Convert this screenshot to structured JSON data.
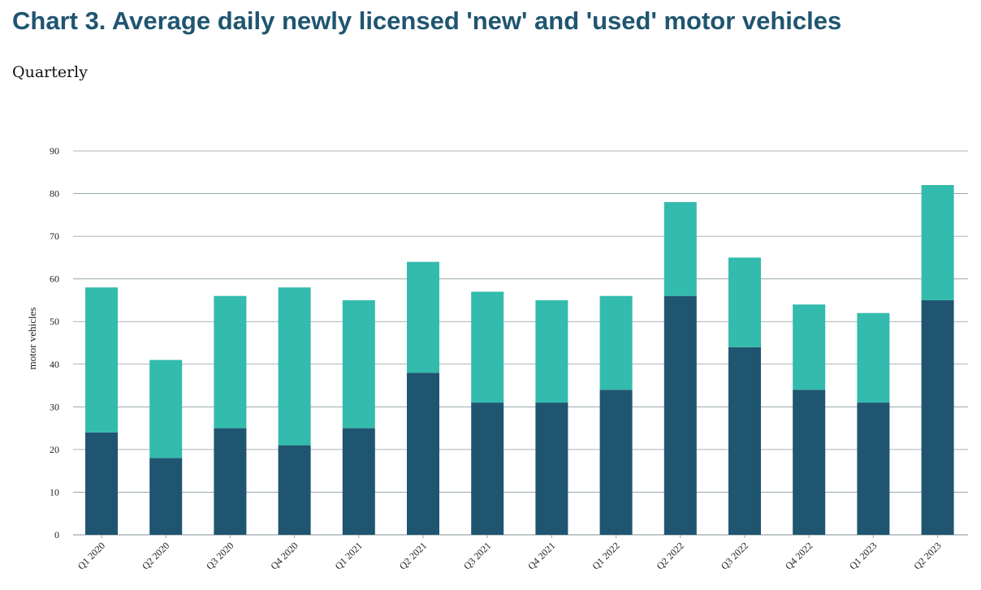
{
  "chart_data": {
    "type": "bar",
    "stacked": true,
    "title": "Chart 3. Average daily newly licensed 'new' and 'used' motor vehicles",
    "subtitle": "Quarterly",
    "xlabel": "",
    "ylabel": "motor vehicles",
    "ylim": [
      0,
      90
    ],
    "yticks": [
      0,
      10,
      20,
      30,
      40,
      50,
      60,
      70,
      80,
      90
    ],
    "grid": true,
    "categories": [
      "Q1 2020",
      "Q2 2020",
      "Q3 2020",
      "Q4 2020",
      "Q1 2021",
      "Q2 2021",
      "Q3 2021",
      "Q4 2021",
      "Q1 2022",
      "Q2 2022",
      "Q3 2022",
      "Q4 2022",
      "Q1 2023",
      "Q2 2023"
    ],
    "series": [
      {
        "color": "#1f5570",
        "values": [
          24,
          18,
          25,
          21,
          25,
          38,
          31,
          31,
          34,
          56,
          44,
          34,
          31,
          55
        ]
      },
      {
        "color": "#33bbad",
        "values": [
          34,
          23,
          31,
          37,
          30,
          26,
          26,
          24,
          22,
          22,
          21,
          20,
          21,
          27
        ]
      }
    ]
  },
  "colors": {
    "title": "#1f5570",
    "grid": "#8c9ba3",
    "axis": "#9aa6ad"
  }
}
